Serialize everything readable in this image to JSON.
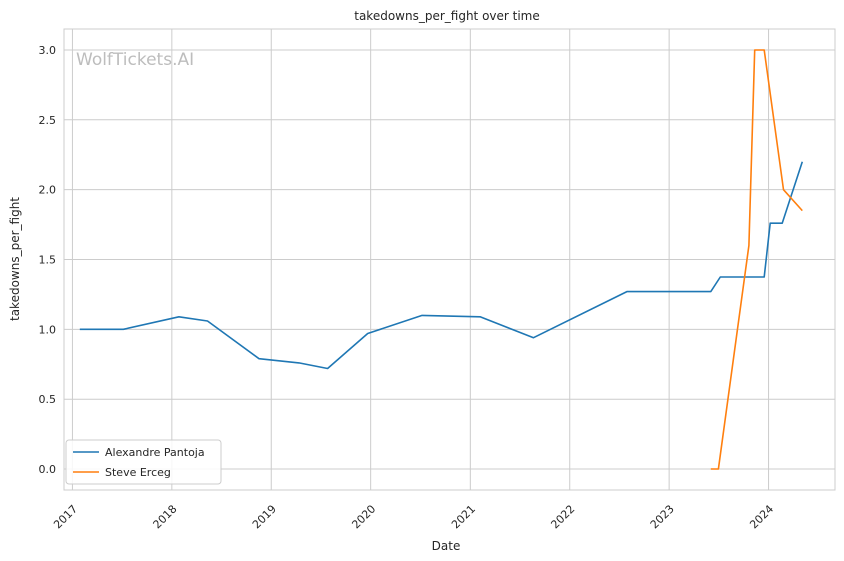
{
  "watermark": "WolfTickets.AI",
  "chart_data": {
    "type": "line",
    "title": "takedowns_per_fight over time",
    "xlabel": "Date",
    "ylabel": "takedowns_per_fight",
    "x_type": "date",
    "xlim": [
      "2016-12-01",
      "2024-09-01"
    ],
    "ylim": [
      -0.15,
      3.15
    ],
    "x_ticks": [
      "2017-01-01",
      "2018-01-01",
      "2019-01-01",
      "2020-01-01",
      "2021-01-01",
      "2022-01-01",
      "2023-01-01",
      "2024-01-01"
    ],
    "x_tick_labels": [
      "2017",
      "2018",
      "2019",
      "2020",
      "2021",
      "2022",
      "2023",
      "2024"
    ],
    "y_ticks": [
      0.0,
      0.5,
      1.0,
      1.5,
      2.0,
      2.5,
      3.0
    ],
    "y_tick_labels": [
      "0.0",
      "0.5",
      "1.0",
      "1.5",
      "2.0",
      "2.5",
      "3.0"
    ],
    "grid": true,
    "legend_position": "lower-left",
    "series": [
      {
        "name": "Alexandre Pantoja",
        "color": "#1f77b4",
        "x": [
          "2017-01-28",
          "2017-07-07",
          "2018-01-27",
          "2018-05-12",
          "2018-11-17",
          "2019-04-13",
          "2019-07-27",
          "2019-12-21",
          "2020-07-08",
          "2021-02-06",
          "2021-08-21",
          "2022-07-30",
          "2023-06-03",
          "2023-07-08",
          "2023-12-16",
          "2024-01-07",
          "2024-02-20",
          "2024-05-04"
        ],
        "y": [
          1.0,
          1.0,
          1.09,
          1.06,
          0.79,
          0.76,
          0.72,
          0.97,
          1.1,
          1.09,
          0.94,
          1.27,
          1.27,
          1.375,
          1.375,
          1.76,
          1.76,
          2.2
        ]
      },
      {
        "name": "Steve Erceg",
        "color": "#ff7f0e",
        "x": [
          "2023-06-03",
          "2023-07-01",
          "2023-10-21",
          "2023-11-11",
          "2023-12-16",
          "2024-02-25",
          "2024-05-04"
        ],
        "y": [
          0.0,
          0.0,
          1.6,
          3.0,
          3.0,
          2.0,
          1.85
        ]
      }
    ]
  }
}
